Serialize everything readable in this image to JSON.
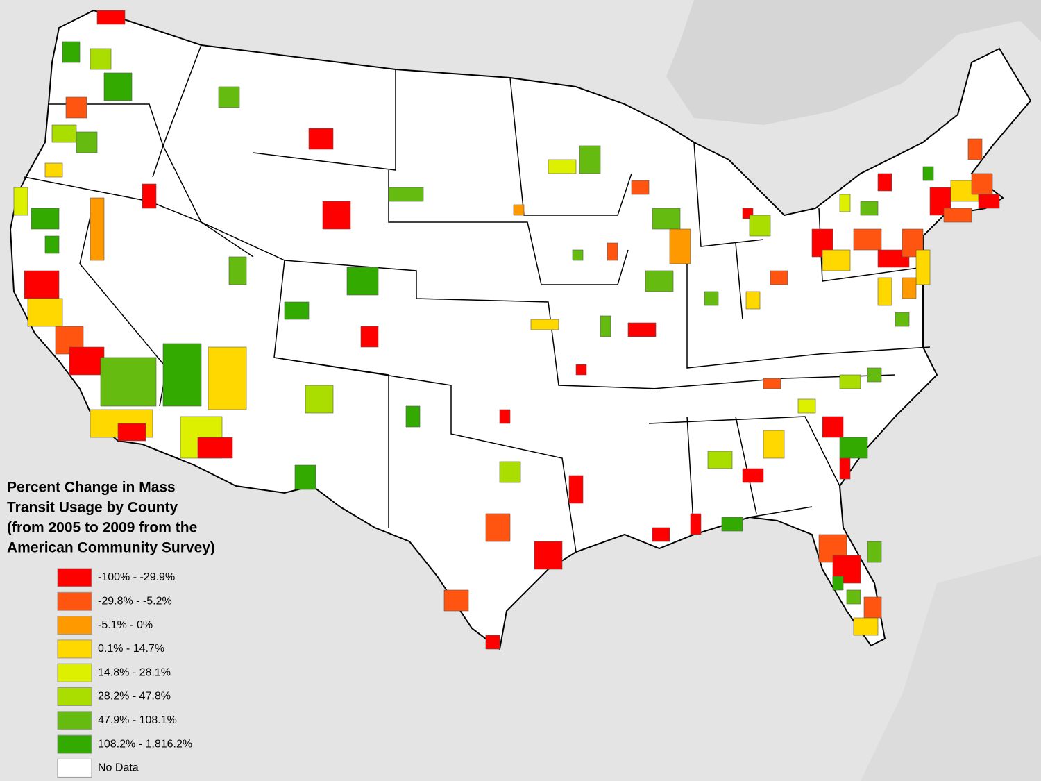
{
  "title_lines": [
    "Percent Change in Mass",
    "Transit Usage by County",
    "(from 2005 to 2009 from the",
    "American Community Survey)"
  ],
  "legend": [
    {
      "label": "-100% - -29.9%",
      "color": "#ff0000"
    },
    {
      "label": "-29.8% - -5.2%",
      "color": "#ff5511"
    },
    {
      "label": "-5.1% - 0%",
      "color": "#ff9900"
    },
    {
      "label": "0.1% - 14.7%",
      "color": "#ffd800"
    },
    {
      "label": "14.8% - 28.1%",
      "color": "#ddf000"
    },
    {
      "label": "28.2% - 47.8%",
      "color": "#aadd00"
    },
    {
      "label": "47.9% - 108.1%",
      "color": "#66bb11"
    },
    {
      "label": "108.2% - 1,816.2%",
      "color": "#33aa00"
    },
    {
      "label": "No Data",
      "color": "#ffffff"
    }
  ]
}
